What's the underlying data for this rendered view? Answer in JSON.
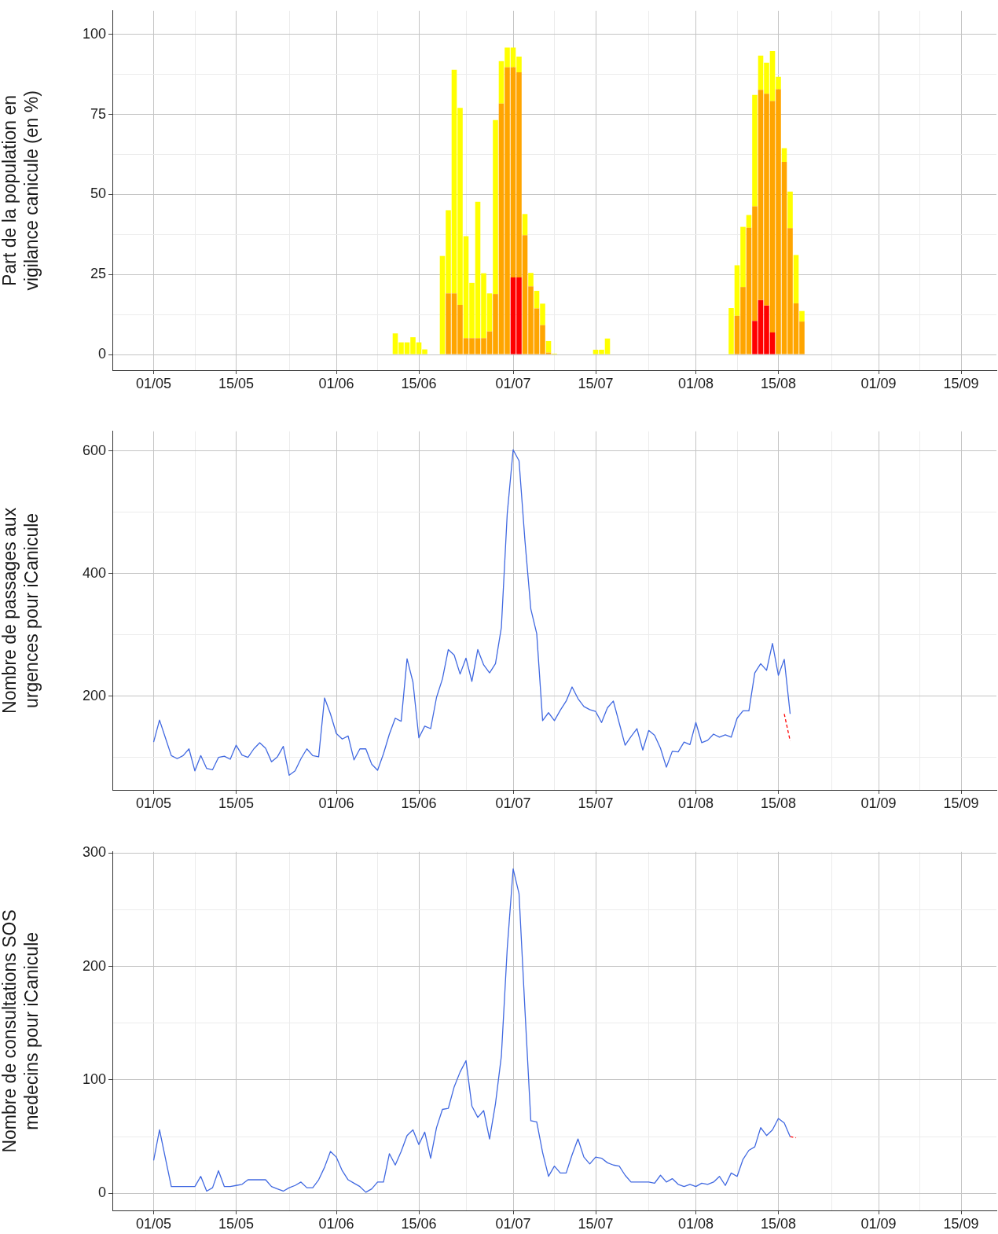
{
  "chart_data": [
    {
      "type": "bar",
      "stacked": true,
      "ylabel": "Part de la population en\nvigilance canicule (en %)",
      "grid": true,
      "x": [
        "--06-11",
        "--06-12",
        "--06-13",
        "--06-14",
        "--06-15",
        "--06-16",
        "--06-19",
        "--06-20",
        "--06-21",
        "--06-22",
        "--06-23",
        "--06-24",
        "--06-25",
        "--06-26",
        "--06-27",
        "--06-28",
        "--06-29",
        "--06-30",
        "--07-01",
        "--07-02",
        "--07-03",
        "--07-04",
        "--07-05",
        "--07-06",
        "--07-07",
        "--07-08",
        "--07-15",
        "--07-16",
        "--07-17",
        "--08-07",
        "--08-08",
        "--08-09",
        "--08-10",
        "--08-11",
        "--08-12",
        "--08-13",
        "--08-14",
        "--08-15",
        "--08-16",
        "--08-17",
        "--08-18",
        "--08-19"
      ],
      "series": [
        {
          "color": "#ff0000",
          "values": [
            0,
            0,
            0,
            0,
            0,
            0,
            0,
            0,
            0,
            0,
            0,
            0,
            0,
            0,
            0,
            0,
            0,
            0,
            24.1,
            24.1,
            0,
            0,
            0,
            0,
            0,
            0,
            0,
            0,
            0,
            0,
            0,
            0,
            0,
            10.5,
            17,
            15.3,
            6.9,
            0,
            0,
            0,
            0,
            0
          ]
        },
        {
          "color": "#ffa500",
          "values": [
            0,
            0,
            0,
            0,
            0,
            0,
            0,
            19.1,
            19.1,
            15.5,
            5.1,
            5.1,
            5.1,
            5.1,
            7.2,
            18.9,
            78.4,
            89.8,
            65.7,
            64.1,
            37.3,
            21.3,
            14.4,
            9.2,
            0.6,
            0,
            0,
            0,
            0,
            0,
            12.1,
            21.1,
            39.6,
            35.8,
            65.7,
            66.2,
            72.3,
            82.9,
            60.2,
            39.5,
            16,
            10.3
          ]
        },
        {
          "color": "#ffff00",
          "values": [
            6.6,
            3.8,
            3.8,
            5.4,
            3.8,
            1.6,
            30.8,
            26,
            69.9,
            61.6,
            31.9,
            17.3,
            42.6,
            20.3,
            11.9,
            54.4,
            13.3,
            6.1,
            6.1,
            4.9,
            6.6,
            4.2,
            5.5,
            6.7,
            3.6,
            0.3,
            1.5,
            1.5,
            5,
            14.5,
            15.8,
            18.8,
            4,
            34.8,
            10.7,
            9.7,
            15.6,
            3.9,
            4.3,
            11.4,
            15.1,
            3.3
          ]
        }
      ],
      "xlim": [
        "--04-24",
        "--09-21"
      ],
      "xticks": [
        {
          "value": "--05-01",
          "label": "01/05"
        },
        {
          "value": "--05-08",
          "label": null
        },
        {
          "value": "--05-15",
          "label": "15/05"
        },
        {
          "value": "--05-24",
          "label": null
        },
        {
          "value": "--06-01",
          "label": "01/06"
        },
        {
          "value": "--06-08",
          "label": null
        },
        {
          "value": "--06-15",
          "label": "15/06"
        },
        {
          "value": "--06-23",
          "label": null
        },
        {
          "value": "--07-01",
          "label": "01/07"
        },
        {
          "value": "--07-08",
          "label": null
        },
        {
          "value": "--07-15",
          "label": "15/07"
        },
        {
          "value": "--07-24",
          "label": null
        },
        {
          "value": "--08-01",
          "label": "01/08"
        },
        {
          "value": "--08-08",
          "label": null
        },
        {
          "value": "--08-15",
          "label": "15/08"
        },
        {
          "value": "--08-24",
          "label": null
        },
        {
          "value": "--09-01",
          "label": "01/09"
        },
        {
          "value": "--09-08",
          "label": null
        },
        {
          "value": "--09-15",
          "label": "15/09"
        }
      ],
      "ylim": [
        -4.9,
        107.4
      ],
      "yticks": [
        0,
        {
          "value": 12.5,
          "label": null
        },
        25,
        {
          "value": 37.5,
          "label": null
        },
        50,
        {
          "value": 62.5,
          "label": null
        },
        75,
        {
          "value": 87.5,
          "label": null
        },
        100
      ]
    },
    {
      "type": "line",
      "ylabel": "Nombre de passages aux\nurgences pour iCanicule",
      "grid": true,
      "marker": "none",
      "line_style": "solid",
      "x": [
        "--05-01",
        "--05-02",
        "--05-03",
        "--05-04",
        "--05-05",
        "--05-06",
        "--05-07",
        "--05-08",
        "--05-09",
        "--05-10",
        "--05-11",
        "--05-12",
        "--05-13",
        "--05-14",
        "--05-15",
        "--05-16",
        "--05-17",
        "--05-18",
        "--05-19",
        "--05-20",
        "--05-21",
        "--05-22",
        "--05-23",
        "--05-24",
        "--05-25",
        "--05-26",
        "--05-27",
        "--05-28",
        "--05-29",
        "--05-30",
        "--05-31",
        "--06-01",
        "--06-02",
        "--06-03",
        "--06-04",
        "--06-05",
        "--06-06",
        "--06-07",
        "--06-08",
        "--06-09",
        "--06-10",
        "--06-11",
        "--06-12",
        "--06-13",
        "--06-14",
        "--06-15",
        "--06-16",
        "--06-17",
        "--06-18",
        "--06-19",
        "--06-20",
        "--06-21",
        "--06-22",
        "--06-23",
        "--06-24",
        "--06-25",
        "--06-26",
        "--06-27",
        "--06-28",
        "--06-29",
        "--06-30",
        "--07-01",
        "--07-02",
        "--07-03",
        "--07-04",
        "--07-05",
        "--07-06",
        "--07-07",
        "--07-08",
        "--07-09",
        "--07-10",
        "--07-11",
        "--07-12",
        "--07-13",
        "--07-14",
        "--07-15",
        "--07-16",
        "--07-17",
        "--07-18",
        "--07-19",
        "--07-20",
        "--07-21",
        "--07-22",
        "--07-23",
        "--07-24",
        "--07-25",
        "--07-26",
        "--07-27",
        "--07-28",
        "--07-29",
        "--07-30",
        "--07-31",
        "--08-01",
        "--08-02",
        "--08-03",
        "--08-04",
        "--08-05",
        "--08-06",
        "--08-07",
        "--08-08",
        "--08-09",
        "--08-10",
        "--08-11",
        "--08-12",
        "--08-13",
        "--08-14",
        "--08-15",
        "--08-16",
        "--08-17"
      ],
      "series": [
        {
          "color": "#4169e1",
          "values": [
            125,
            161,
            132,
            103,
            98,
            103,
            114,
            78,
            103,
            82,
            80,
            100,
            102,
            97,
            120,
            104,
            100,
            114,
            124,
            115,
            93,
            101,
            118,
            71,
            78,
            98,
            114,
            103,
            101,
            197,
            171,
            139,
            130,
            135,
            96,
            114,
            114,
            89,
            79,
            106,
            138,
            164,
            159,
            261,
            223,
            132,
            151,
            147,
            198,
            228,
            276,
            267,
            236,
            262,
            224,
            276,
            251,
            238,
            253,
            312,
            498,
            602,
            584,
            454,
            342,
            302,
            160,
            173,
            160,
            177,
            192,
            215,
            196,
            183,
            178,
            175,
            157,
            181,
            192,
            156,
            120,
            134,
            147,
            112,
            144,
            136,
            115,
            84,
            110,
            109,
            125,
            121,
            157,
            124,
            128,
            138,
            133,
            137,
            133,
            164,
            176,
            176,
            238,
            253,
            242,
            286,
            234,
            260,
            171
          ]
        },
        {
          "color": "#ff0000",
          "line_style": "dashed",
          "x": [
            "--08-16",
            "--08-17"
          ],
          "values": [
            171,
            127
          ]
        }
      ],
      "xlim": [
        "--04-24",
        "--09-21"
      ],
      "xticks": [
        {
          "value": "--05-01",
          "label": "01/05"
        },
        {
          "value": "--05-08",
          "label": null
        },
        {
          "value": "--05-15",
          "label": "15/05"
        },
        {
          "value": "--05-24",
          "label": null
        },
        {
          "value": "--06-01",
          "label": "01/06"
        },
        {
          "value": "--06-08",
          "label": null
        },
        {
          "value": "--06-15",
          "label": "15/06"
        },
        {
          "value": "--06-23",
          "label": null
        },
        {
          "value": "--07-01",
          "label": "01/07"
        },
        {
          "value": "--07-08",
          "label": null
        },
        {
          "value": "--07-15",
          "label": "15/07"
        },
        {
          "value": "--07-24",
          "label": null
        },
        {
          "value": "--08-01",
          "label": "01/08"
        },
        {
          "value": "--08-08",
          "label": null
        },
        {
          "value": "--08-15",
          "label": "15/08"
        },
        {
          "value": "--08-24",
          "label": null
        },
        {
          "value": "--09-01",
          "label": "01/09"
        },
        {
          "value": "--09-08",
          "label": null
        },
        {
          "value": "--09-15",
          "label": "15/09"
        }
      ],
      "ylim": [
        47,
        632
      ],
      "yticks": [
        {
          "value": 100,
          "label": null
        },
        200,
        {
          "value": 300,
          "label": null
        },
        400,
        {
          "value": 500,
          "label": null
        },
        600
      ]
    },
    {
      "type": "line",
      "ylabel": "Nombre de consultations SOS\nmedecins pour iCanicule",
      "grid": true,
      "marker": "none",
      "line_style": "solid",
      "x": [
        "--05-01",
        "--05-02",
        "--05-03",
        "--05-04",
        "--05-05",
        "--05-06",
        "--05-07",
        "--05-08",
        "--05-09",
        "--05-10",
        "--05-11",
        "--05-12",
        "--05-13",
        "--05-14",
        "--05-15",
        "--05-16",
        "--05-17",
        "--05-18",
        "--05-19",
        "--05-20",
        "--05-21",
        "--05-22",
        "--05-23",
        "--05-24",
        "--05-25",
        "--05-26",
        "--05-27",
        "--05-28",
        "--05-29",
        "--05-30",
        "--05-31",
        "--06-01",
        "--06-02",
        "--06-03",
        "--06-04",
        "--06-05",
        "--06-06",
        "--06-07",
        "--06-08",
        "--06-09",
        "--06-10",
        "--06-11",
        "--06-12",
        "--06-13",
        "--06-14",
        "--06-15",
        "--06-16",
        "--06-17",
        "--06-18",
        "--06-19",
        "--06-20",
        "--06-21",
        "--06-22",
        "--06-23",
        "--06-24",
        "--06-25",
        "--06-26",
        "--06-27",
        "--06-28",
        "--06-29",
        "--06-30",
        "--07-01",
        "--07-02",
        "--07-03",
        "--07-04",
        "--07-05",
        "--07-06",
        "--07-07",
        "--07-08",
        "--07-09",
        "--07-10",
        "--07-11",
        "--07-12",
        "--07-13",
        "--07-14",
        "--07-15",
        "--07-16",
        "--07-17",
        "--07-18",
        "--07-19",
        "--07-20",
        "--07-21",
        "--07-22",
        "--07-23",
        "--07-24",
        "--07-25",
        "--07-26",
        "--07-27",
        "--07-28",
        "--07-29",
        "--07-30",
        "--07-31",
        "--08-01",
        "--08-02",
        "--08-03",
        "--08-04",
        "--08-05",
        "--08-06",
        "--08-07",
        "--08-08",
        "--08-09",
        "--08-10",
        "--08-11",
        "--08-12",
        "--08-13",
        "--08-14",
        "--08-15",
        "--08-16",
        "--08-17"
      ],
      "series": [
        {
          "color": "#4169e1",
          "values": [
            29,
            56,
            31,
            6,
            6,
            6,
            6,
            6,
            15,
            2,
            5,
            20,
            6,
            6,
            7,
            8,
            12,
            12,
            12,
            12,
            6,
            4,
            2,
            5,
            7,
            10,
            5,
            5,
            12,
            23,
            37,
            32,
            20,
            12,
            9,
            6,
            1,
            4,
            10,
            10,
            35,
            25,
            37,
            51,
            56,
            43,
            54,
            31,
            58,
            74,
            75,
            94,
            107,
            117,
            77,
            67,
            73,
            48,
            79,
            121,
            216,
            286,
            264,
            162,
            64,
            63,
            36,
            15,
            24,
            18,
            18,
            34,
            48,
            32,
            26,
            32,
            31,
            27,
            25,
            24,
            16,
            10,
            10,
            10,
            10,
            9,
            16,
            10,
            13,
            8,
            6,
            8,
            6,
            9,
            8,
            10,
            15,
            7,
            18,
            15,
            30,
            38,
            41,
            58,
            51,
            56,
            66,
            62,
            50
          ]
        },
        {
          "color": "#ff0000",
          "line_style": "dashed",
          "x": [
            "--08-17",
            "--08-18"
          ],
          "values": [
            50,
            49
          ]
        }
      ],
      "xlim": [
        "--04-24",
        "--09-21"
      ],
      "xticks": [
        {
          "value": "--05-01",
          "label": "01/05"
        },
        {
          "value": "--05-08",
          "label": null
        },
        {
          "value": "--05-15",
          "label": "15/05"
        },
        {
          "value": "--05-24",
          "label": null
        },
        {
          "value": "--06-01",
          "label": "01/06"
        },
        {
          "value": "--06-08",
          "label": null
        },
        {
          "value": "--06-15",
          "label": "15/06"
        },
        {
          "value": "--06-23",
          "label": null
        },
        {
          "value": "--07-01",
          "label": "01/07"
        },
        {
          "value": "--07-08",
          "label": null
        },
        {
          "value": "--07-15",
          "label": "15/07"
        },
        {
          "value": "--07-24",
          "label": null
        },
        {
          "value": "--08-01",
          "label": "01/08"
        },
        {
          "value": "--08-08",
          "label": null
        },
        {
          "value": "--08-15",
          "label": "15/08"
        },
        {
          "value": "--08-24",
          "label": null
        },
        {
          "value": "--09-01",
          "label": "01/09"
        },
        {
          "value": "--09-08",
          "label": null
        },
        {
          "value": "--09-15",
          "label": "15/09"
        }
      ],
      "ylim": [
        -15,
        301
      ],
      "yticks": [
        0,
        {
          "value": 50,
          "label": null
        },
        100,
        {
          "value": 150,
          "label": null
        },
        200,
        {
          "value": 250,
          "label": null
        },
        300
      ]
    }
  ]
}
